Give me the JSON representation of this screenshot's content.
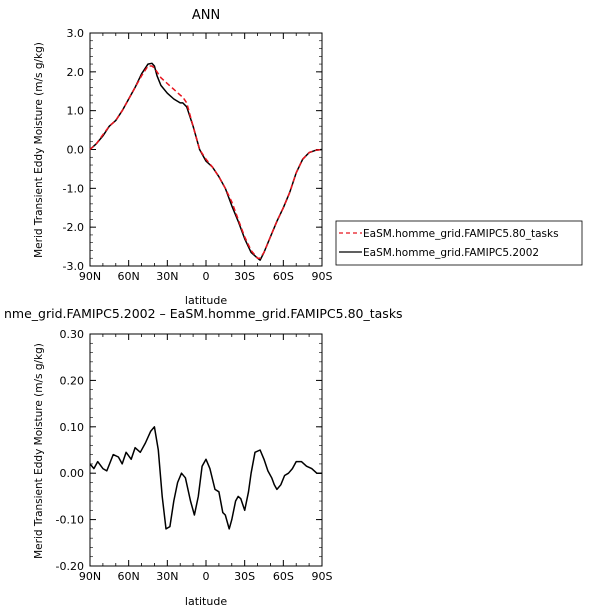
{
  "chart_data": [
    {
      "type": "line",
      "title": "ANN",
      "xlabel": "latitude",
      "ylabel": "Merid Transient Eddy Moisture (m/s g/kg)",
      "x_tick_labels": [
        "90N",
        "60N",
        "30N",
        "0",
        "30S",
        "60S",
        "90S"
      ],
      "x_tick_values": [
        90,
        60,
        30,
        0,
        -30,
        -60,
        -90
      ],
      "y_tick_labels": [
        "3.0",
        "2.0",
        "1.0",
        "0.0",
        "-1.0",
        "-2.0",
        "-3.0"
      ],
      "y_tick_values": [
        3,
        2,
        1,
        0,
        -1,
        -2,
        -3
      ],
      "xlim": [
        90,
        -90
      ],
      "ylim": [
        -3,
        3
      ],
      "legend_position": "right",
      "series": [
        {
          "name": "EaSM.homme_grid.FAMIPC5.80_tasks",
          "color": "#e8141e",
          "dash": "dashed",
          "x": [
            90,
            85,
            80,
            75,
            70,
            65,
            60,
            55,
            50,
            45,
            42,
            40,
            38,
            35,
            30,
            25,
            20,
            18,
            15,
            10,
            5,
            0,
            -5,
            -10,
            -15,
            -20,
            -25,
            -30,
            -35,
            -40,
            -42,
            -45,
            -50,
            -55,
            -60,
            -65,
            -70,
            -75,
            -80,
            -85,
            -90
          ],
          "y": [
            0.0,
            0.15,
            0.38,
            0.6,
            0.75,
            1.0,
            1.3,
            1.6,
            1.9,
            2.15,
            2.15,
            2.1,
            2.0,
            1.85,
            1.7,
            1.55,
            1.4,
            1.35,
            1.2,
            0.6,
            0.0,
            -0.25,
            -0.45,
            -0.7,
            -1.0,
            -1.35,
            -1.8,
            -2.25,
            -2.6,
            -2.8,
            -2.8,
            -2.65,
            -2.25,
            -1.85,
            -1.5,
            -1.1,
            -0.6,
            -0.25,
            -0.08,
            -0.02,
            0.0
          ]
        },
        {
          "name": "EaSM.homme_grid.FAMIPC5.2002",
          "color": "#000000",
          "dash": "solid",
          "x": [
            90,
            85,
            80,
            75,
            70,
            65,
            60,
            55,
            50,
            45,
            42,
            40,
            38,
            35,
            30,
            25,
            20,
            18,
            15,
            10,
            5,
            0,
            -5,
            -10,
            -15,
            -20,
            -25,
            -30,
            -35,
            -40,
            -42,
            -45,
            -50,
            -55,
            -60,
            -65,
            -70,
            -75,
            -80,
            -85,
            -90
          ],
          "y": [
            0.0,
            0.15,
            0.35,
            0.6,
            0.75,
            1.0,
            1.3,
            1.6,
            1.95,
            2.2,
            2.22,
            2.15,
            1.9,
            1.65,
            1.45,
            1.3,
            1.2,
            1.2,
            1.1,
            0.6,
            0.0,
            -0.3,
            -0.45,
            -0.7,
            -1.0,
            -1.45,
            -1.85,
            -2.3,
            -2.65,
            -2.8,
            -2.85,
            -2.65,
            -2.25,
            -1.85,
            -1.5,
            -1.1,
            -0.6,
            -0.25,
            -0.08,
            -0.02,
            0.0
          ]
        }
      ]
    },
    {
      "type": "line",
      "title": "nme_grid.FAMIPC5.2002 – EaSM.homme_grid.FAMIPC5.80_tasks",
      "xlabel": "latitude",
      "ylabel": "Merid Transient Eddy Moisture (m/s g/kg)",
      "x_tick_labels": [
        "90N",
        "60N",
        "30N",
        "0",
        "30S",
        "60S",
        "90S"
      ],
      "x_tick_values": [
        90,
        60,
        30,
        0,
        -30,
        -60,
        -90
      ],
      "y_tick_labels": [
        "0.30",
        "0.20",
        "0.10",
        "0.00",
        "-0.10",
        "-0.20"
      ],
      "y_tick_values": [
        0.3,
        0.2,
        0.1,
        0.0,
        -0.1,
        -0.2
      ],
      "xlim": [
        90,
        -90
      ],
      "ylim": [
        -0.2,
        0.3
      ],
      "series": [
        {
          "color": "#000000",
          "dash": "solid",
          "x": [
            90,
            87,
            84,
            80,
            77,
            72,
            68,
            65,
            62,
            58,
            55,
            51,
            47,
            43,
            40,
            37,
            34,
            31,
            28,
            25,
            22,
            19,
            16,
            12,
            9,
            6,
            3,
            0,
            -3,
            -7,
            -10,
            -13,
            -15,
            -18,
            -20,
            -23,
            -25,
            -27,
            -30,
            -33,
            -35,
            -38,
            -42,
            -45,
            -48,
            -51,
            -53,
            -55,
            -58,
            -61,
            -64,
            -67,
            -70,
            -74,
            -78,
            -82,
            -86,
            -90
          ],
          "y": [
            0.02,
            0.01,
            0.025,
            0.01,
            0.005,
            0.04,
            0.035,
            0.02,
            0.045,
            0.03,
            0.055,
            0.045,
            0.065,
            0.09,
            0.1,
            0.05,
            -0.05,
            -0.12,
            -0.115,
            -0.06,
            -0.02,
            0.0,
            -0.01,
            -0.06,
            -0.09,
            -0.05,
            0.015,
            0.03,
            0.01,
            -0.035,
            -0.04,
            -0.085,
            -0.09,
            -0.12,
            -0.1,
            -0.06,
            -0.05,
            -0.055,
            -0.08,
            -0.04,
            0.0,
            0.045,
            0.05,
            0.03,
            0.005,
            -0.01,
            -0.025,
            -0.035,
            -0.025,
            -0.005,
            0.0,
            0.01,
            0.025,
            0.025,
            0.015,
            0.01,
            0.0,
            0.0
          ]
        }
      ]
    }
  ]
}
